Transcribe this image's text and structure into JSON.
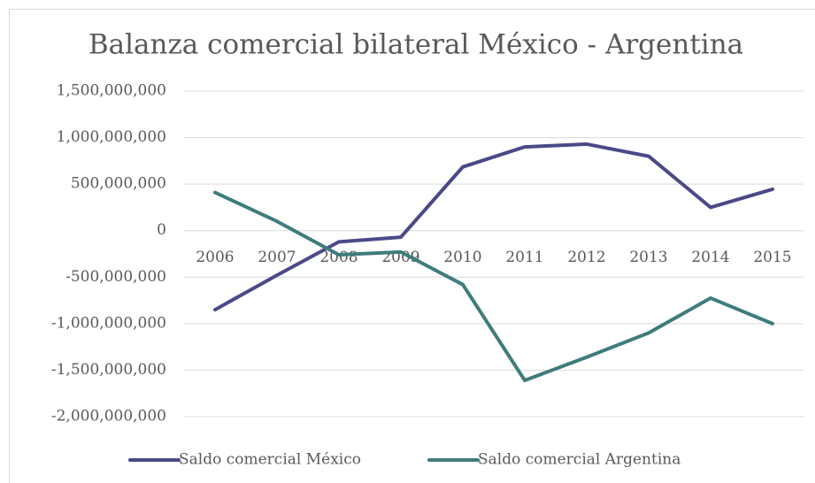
{
  "chart_data": {
    "type": "line",
    "title": "Balanza comercial bilateral México - Argentina",
    "categories": [
      "2006",
      "2007",
      "2008",
      "2009",
      "2010",
      "2011",
      "2012",
      "2013",
      "2014",
      "2015"
    ],
    "series": [
      {
        "name": "Saldo comercial México",
        "color": "#4b4a87",
        "values": [
          -850000000,
          -480000000,
          -120000000,
          -70000000,
          685000000,
          900000000,
          930000000,
          800000000,
          250000000,
          445000000
        ]
      },
      {
        "name": "Saldo comercial Argentina",
        "color": "#3f7c7c",
        "values": [
          410000000,
          100000000,
          -260000000,
          -230000000,
          -580000000,
          -1610000000,
          -1360000000,
          -1100000000,
          -725000000,
          -1000000000
        ]
      }
    ],
    "ylim": [
      -2000000000,
      1500000000
    ],
    "yticks": [
      {
        "value": -2000000000,
        "label": "-2,000,000,000"
      },
      {
        "value": -1500000000,
        "label": "-1,500,000,000"
      },
      {
        "value": -1000000000,
        "label": "-1,000,000,000"
      },
      {
        "value": -500000000,
        "label": "-500,000,000"
      },
      0,
      {
        "value": 500000000,
        "label": "500,000,000"
      },
      {
        "value": 1000000000,
        "label": "1,000,000,000"
      },
      {
        "value": 1500000000,
        "label": "1,500,000,000"
      }
    ],
    "grid": true,
    "legend": "bottom"
  }
}
